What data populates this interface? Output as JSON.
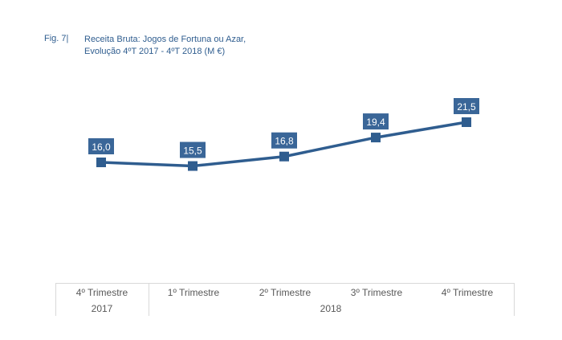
{
  "chart_data": {
    "type": "line",
    "figure_label": "Fig. 7|",
    "title": "Receita Bruta: Jogos de Fortuna ou Azar,",
    "subtitle": "Evolução 4ºT 2017 - 4ºT 2018 (M €)",
    "categories": [
      "4º Trimestre",
      "1º Trimestre",
      "2º Trimestre",
      "3º Trimestre",
      "4º Trimestre"
    ],
    "groups": [
      "2017",
      "2018"
    ],
    "values": [
      16.0,
      15.5,
      16.8,
      19.4,
      21.5
    ],
    "data_labels": [
      "16,0",
      "15,5",
      "16,8",
      "19,4",
      "21,5"
    ],
    "color": "#2f5d8f",
    "label_box_color": "#3a6698"
  }
}
